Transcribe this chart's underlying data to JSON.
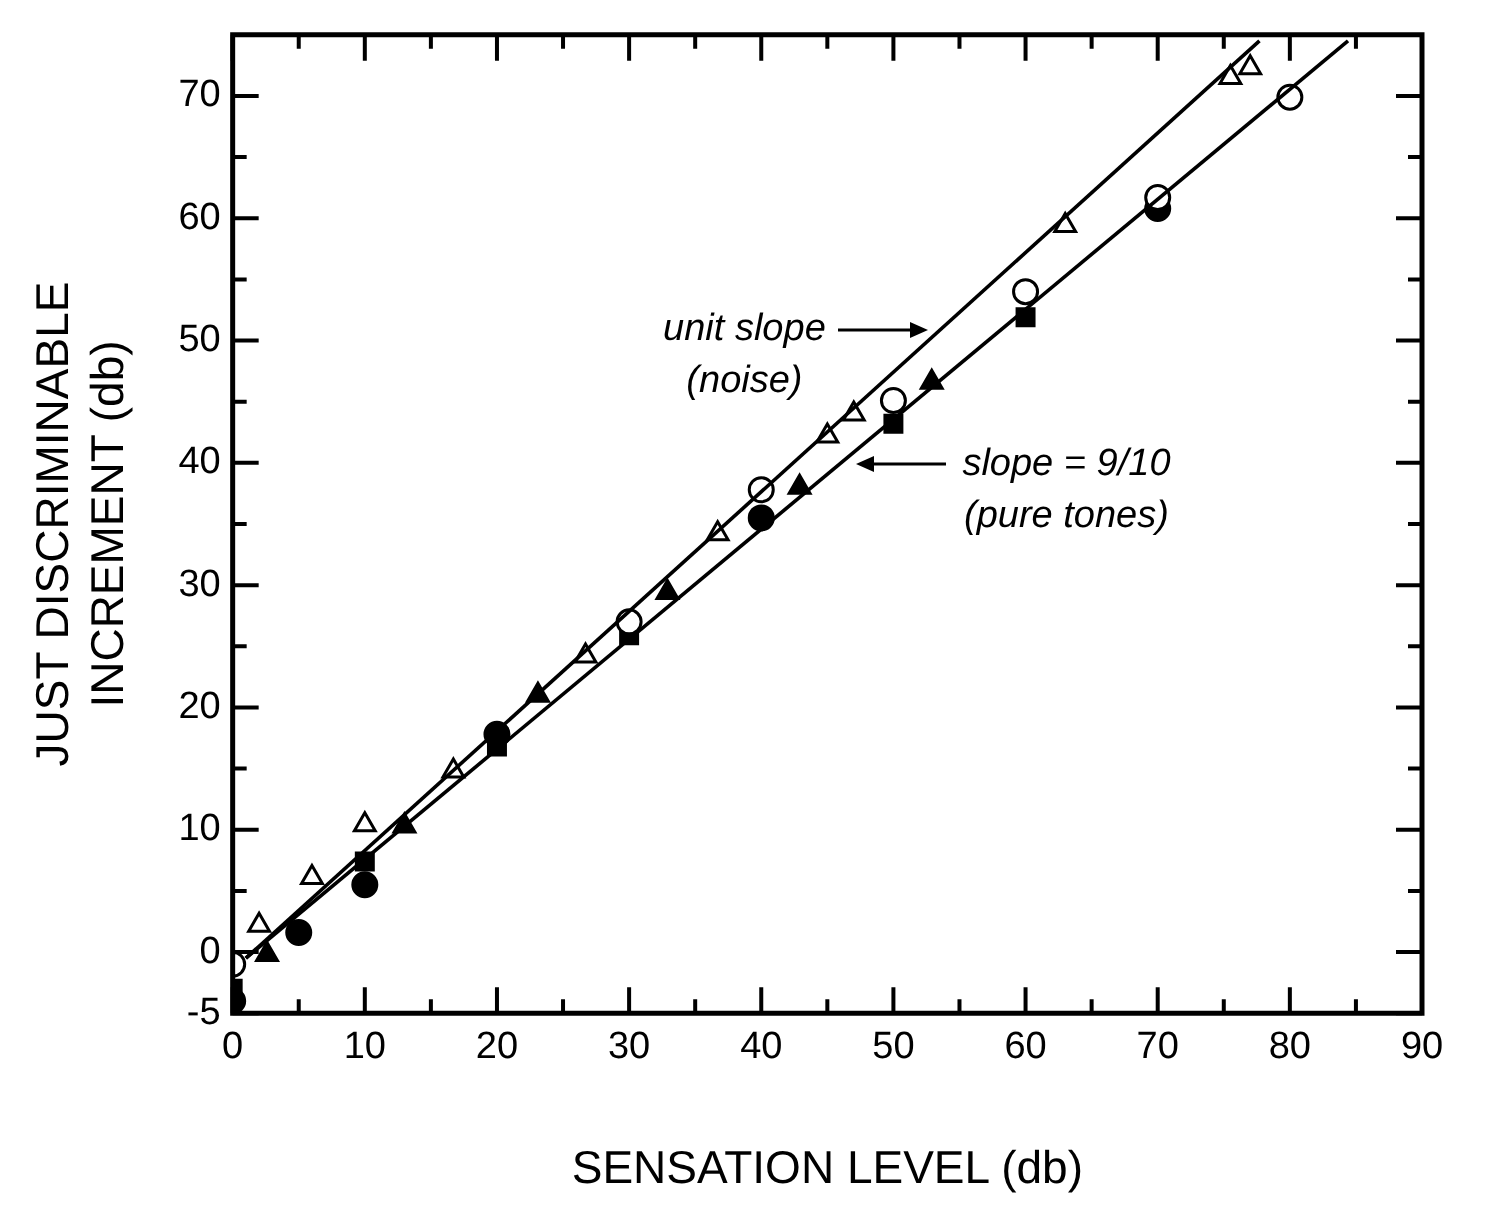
{
  "chart_data": {
    "type": "scatter",
    "xlabel": "SENSATION LEVEL (db)",
    "ylabel": "JUST DISCRIMINABLE\nINCREMENT (db)",
    "xlim": [
      0,
      90
    ],
    "ylim": [
      -5,
      75
    ],
    "xticks": [
      0,
      {
        "value": 5,
        "label": null
      },
      10,
      {
        "value": 15,
        "label": null
      },
      20,
      {
        "value": 25,
        "label": null
      },
      30,
      {
        "value": 35,
        "label": null
      },
      40,
      {
        "value": 45,
        "label": null
      },
      50,
      {
        "value": 55,
        "label": null
      },
      60,
      {
        "value": 65,
        "label": null
      },
      70,
      {
        "value": 75,
        "label": null
      },
      80,
      {
        "value": 85,
        "label": null
      },
      90
    ],
    "yticks": [
      -5,
      0,
      {
        "value": 5,
        "label": null
      },
      10,
      {
        "value": 15,
        "label": null
      },
      20,
      {
        "value": 25,
        "label": null
      },
      30,
      {
        "value": 35,
        "label": null
      },
      40,
      {
        "value": 45,
        "label": null
      },
      50,
      {
        "value": 55,
        "label": null
      },
      60,
      {
        "value": 65,
        "label": null
      },
      70
    ],
    "grid": false,
    "legend": false,
    "series": [
      {
        "type": "line",
        "color": "#000000",
        "x": [
          1,
          77.7
        ],
        "values": [
          -0.5,
          74.5
        ],
        "marker": "none"
      },
      {
        "type": "line",
        "color": "#000000",
        "x": [
          1,
          84.4
        ],
        "values": [
          -0.5,
          74.5
        ],
        "marker": "none"
      },
      {
        "color": "#ffffff",
        "marker": "triangle",
        "x": [
          2,
          6,
          10,
          16.7,
          26.7,
          36.7,
          45,
          47,
          63,
          75.5,
          77
        ],
        "values": [
          2.2,
          6.1,
          10.4,
          14.8,
          24.2,
          34.2,
          42.2,
          44,
          59.4,
          71.5,
          72.3
        ]
      },
      {
        "color": "#ffffff",
        "marker": "circle",
        "x": [
          0,
          30,
          40,
          50,
          60,
          70,
          80
        ],
        "values": [
          -1,
          27,
          37.8,
          45.1,
          54,
          61.7,
          69.9
        ]
      },
      {
        "color": "#000000",
        "marker": "circle",
        "x": [
          0,
          5,
          10,
          20,
          40,
          70
        ],
        "values": [
          -4,
          1.6,
          5.5,
          17.8,
          35.5,
          60.8
        ]
      },
      {
        "color": "#000000",
        "marker": "square",
        "x": [
          0,
          10,
          20,
          30,
          50,
          60
        ],
        "values": [
          -3,
          7.4,
          16.8,
          25.9,
          43.2,
          51.9
        ]
      },
      {
        "color": "#000000",
        "marker": "triangle",
        "x": [
          2.6,
          13,
          23.1,
          32.9,
          42.9,
          52.9
        ],
        "values": [
          -0.2,
          10.3,
          21,
          29.4,
          38,
          46.6
        ]
      }
    ],
    "annotations": [
      {
        "text": "unit slope\n(noise)",
        "x": 52.6,
        "y": 50.9
      },
      {
        "text": "slope = 9/10\n(pure tones)",
        "x": 47.2,
        "y": 39.9
      }
    ]
  }
}
